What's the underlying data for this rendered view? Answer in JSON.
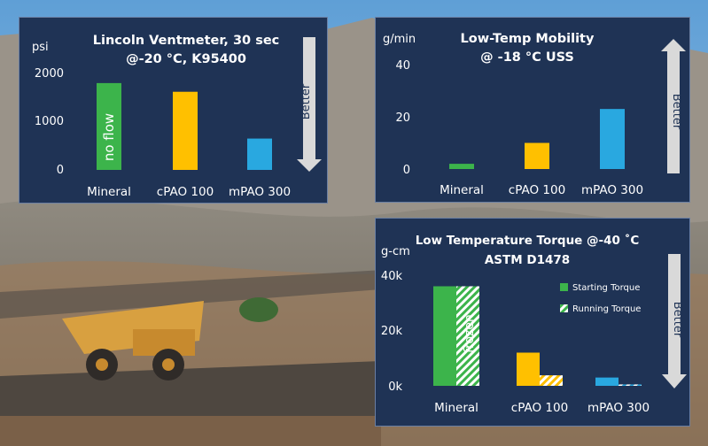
{
  "colors": {
    "panel_bg": "#1f3355",
    "mineral": "#3cb44b",
    "cpao": "#ffc000",
    "mpao": "#29a8e0",
    "arrow": "#d9d9d9"
  },
  "chart_data": [
    {
      "type": "bar",
      "title": "Lincoln Ventmeter, 30 sec",
      "subtitle": "@-20 °C, K95400",
      "ylabel": "psi",
      "categories": [
        "Mineral",
        "cPAO 100",
        "mPAO 300"
      ],
      "values": [
        1800,
        1620,
        650
      ],
      "ylim": [
        0,
        2000
      ],
      "yticks": [
        "0",
        "1000",
        "2000"
      ],
      "annotation": "no flow",
      "better": "Better",
      "better_direction": "down"
    },
    {
      "type": "bar",
      "title": "Low-Temp Mobility",
      "subtitle": "@ -18 °C USS",
      "ylabel": "g/min",
      "categories": [
        "Mineral",
        "cPAO 100",
        "mPAO 300"
      ],
      "values": [
        2,
        10,
        23
      ],
      "ylim": [
        0,
        40
      ],
      "yticks": [
        "0",
        "20",
        "40"
      ],
      "better": "Better",
      "better_direction": "up"
    },
    {
      "type": "bar",
      "title": "Low Temperature Torque @-40 ˚C",
      "subtitle": "ASTM D1478",
      "ylabel": "g-cm",
      "categories": [
        "Mineral",
        "cPAO 100",
        "mPAO 300"
      ],
      "series": [
        {
          "name": "Starting Torque",
          "values": [
            36000,
            12000,
            3000
          ]
        },
        {
          "name": "Running Torque",
          "values": [
            36000,
            3800,
            500
          ]
        }
      ],
      "ylim": [
        0,
        40000
      ],
      "yticks": [
        "0k",
        "20k",
        "40k"
      ],
      "annotation": "frozen",
      "better": "Better",
      "better_direction": "down"
    }
  ]
}
